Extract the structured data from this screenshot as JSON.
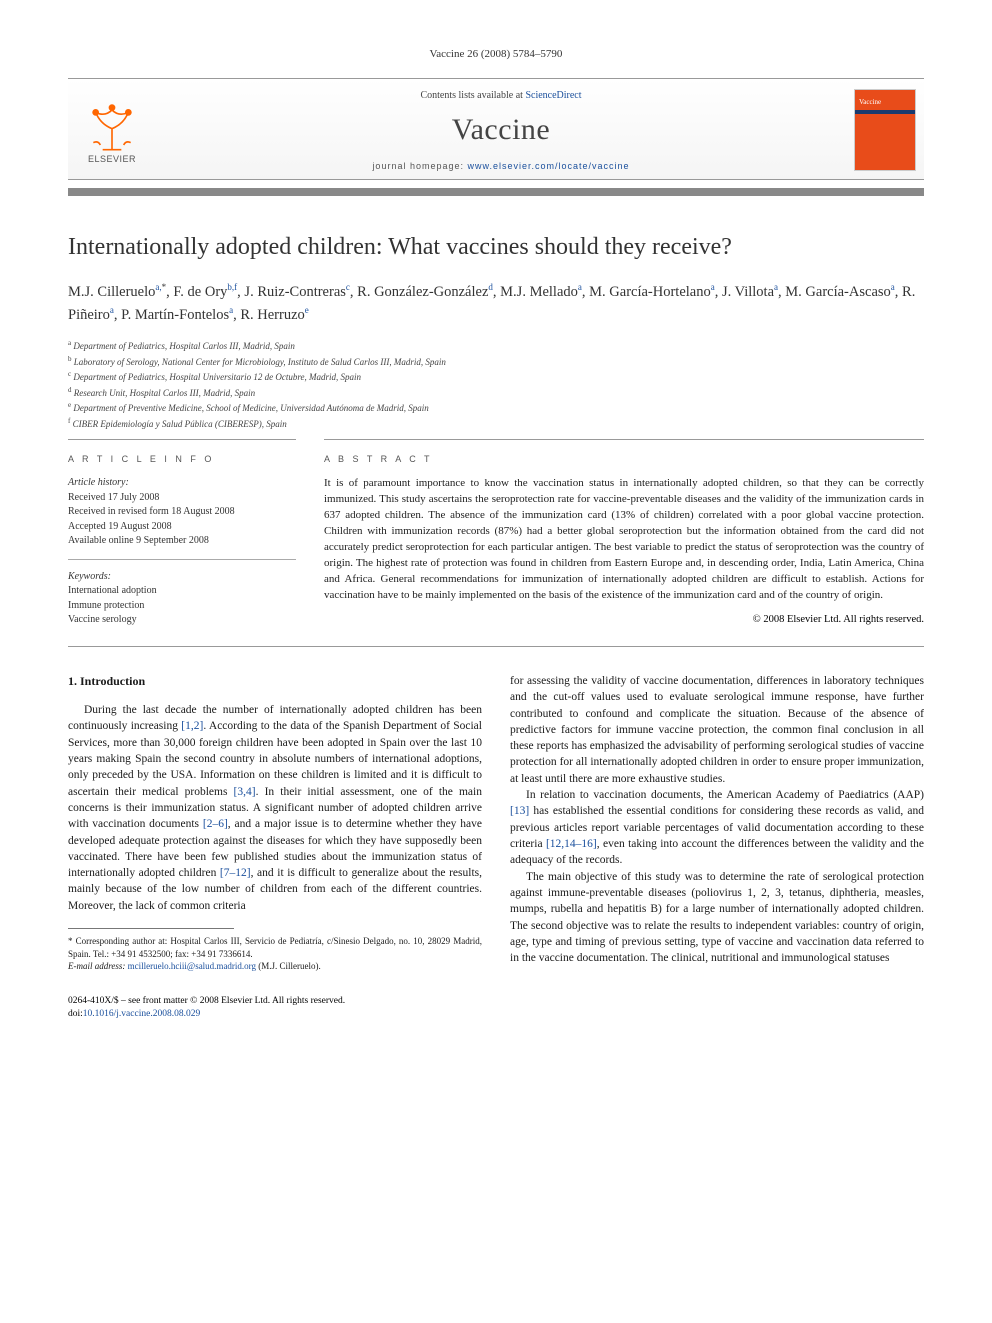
{
  "header_citation": "Vaccine 26 (2008) 5784–5790",
  "banner": {
    "contents_list_prefix": "Contents lists available at ",
    "contents_list_link": "ScienceDirect",
    "journal": "Vaccine",
    "homepage_prefix": "journal homepage: ",
    "homepage_url": "www.elsevier.com/locate/vaccine",
    "elsevier": "ELSEVIER",
    "cover_label": "Vaccine",
    "colors": {
      "elsevier_orange": "#ff6600",
      "cover_bg": "#e84c1a",
      "link": "#1a4f9c",
      "rule": "#888888"
    }
  },
  "title": "Internationally adopted children: What vaccines should they receive?",
  "authors_html": "M.J. Cilleruelo<sup>a,</sup><sup class=\"sup-star\">*</sup>, F. de Ory<sup>b,f</sup>, J. Ruiz-Contreras<sup>c</sup>, R. González-González<sup>d</sup>, M.J. Mellado<sup>a</sup>, M. García-Hortelano<sup>a</sup>, J. Villota<sup>a</sup>, M. García-Ascaso<sup>a</sup>, R. Piñeiro<sup>a</sup>, P. Martín-Fontelos<sup>a</sup>, R. Herruzo<sup>e</sup>",
  "affiliations": [
    {
      "sup": "a",
      "text": "Department of Pediatrics, Hospital Carlos III, Madrid, Spain"
    },
    {
      "sup": "b",
      "text": "Laboratory of Serology, National Center for Microbiology, Instituto de Salud Carlos III, Madrid, Spain"
    },
    {
      "sup": "c",
      "text": "Department of Pediatrics, Hospital Universitario 12 de Octubre, Madrid, Spain"
    },
    {
      "sup": "d",
      "text": "Research Unit, Hospital Carlos III, Madrid, Spain"
    },
    {
      "sup": "e",
      "text": "Department of Preventive Medicine, School of Medicine, Universidad Autónoma de Madrid, Spain"
    },
    {
      "sup": "f",
      "text": "CIBER Epidemiología y Salud Pública (CIBERESP), Spain"
    }
  ],
  "info_label": "A R T I C L E   I N F O",
  "abstract_label": "A B S T R A C T",
  "history": {
    "label": "Article history:",
    "received": "Received 17 July 2008",
    "received_revised": "Received in revised form 18 August 2008",
    "accepted": "Accepted 19 August 2008",
    "online": "Available online 9 September 2008"
  },
  "keywords": {
    "label": "Keywords:",
    "items": [
      "International adoption",
      "Immune protection",
      "Vaccine serology"
    ]
  },
  "abstract": "It is of paramount importance to know the vaccination status in internationally adopted children, so that they can be correctly immunized. This study ascertains the seroprotection rate for vaccine-preventable diseases and the validity of the immunization cards in 637 adopted children. The absence of the immunization card (13% of children) correlated with a poor global vaccine protection. Children with immunization records (87%) had a better global seroprotection but the information obtained from the card did not accurately predict seroprotection for each particular antigen. The best variable to predict the status of seroprotection was the country of origin. The highest rate of protection was found in children from Eastern Europe and, in descending order, India, Latin America, China and Africa. General recommendations for immunization of internationally adopted children are difficult to establish. Actions for vaccination have to be mainly implemented on the basis of the existence of the immunization card and of the country of origin.",
  "copyright": "© 2008 Elsevier Ltd. All rights reserved.",
  "intro_heading": "1.  Introduction",
  "intro_p1_pre": "During the last decade the number of internationally adopted children has been continuously increasing ",
  "intro_p1_ref1": "[1,2]",
  "intro_p1_mid1": ". According to the data of the Spanish Department of Social Services, more than 30,000 foreign children have been adopted in Spain over the last 10 years making Spain the second country in absolute numbers of international adoptions, only preceded by the USA. Information on these children is limited and it is difficult to ascertain their medical problems ",
  "intro_p1_ref2": "[3,4]",
  "intro_p1_mid2": ". In their initial assessment, one of the main concerns is their immunization status. A significant number of adopted children arrive with vaccination documents ",
  "intro_p1_ref3": "[2–6]",
  "intro_p1_mid3": ", and a major issue is to determine whether they have developed adequate protection against the diseases for which they have supposedly been vaccinated. There have been few published studies about the immunization status of internationally adopted children ",
  "intro_p1_ref4": "[7–12]",
  "intro_p1_post": ", and it is difficult to generalize about the results, mainly because of the low number of children from each of the different countries. Moreover, the lack of common criteria",
  "col2_p1": "for assessing the validity of vaccine documentation, differences in laboratory techniques and the cut-off values used to evaluate serological immune response, have further contributed to confound and complicate the situation. Because of the absence of predictive factors for immune vaccine protection, the common final conclusion in all these reports has emphasized the advisability of performing serological studies of vaccine protection for all internationally adopted children in order to ensure proper immunization, at least until there are more exhaustive studies.",
  "col2_p2_pre": "In relation to vaccination documents, the American Academy of Paediatrics (AAP) ",
  "col2_p2_ref1": "[13]",
  "col2_p2_mid": " has established the essential conditions for considering these records as valid, and previous articles report variable percentages of valid documentation according to these criteria ",
  "col2_p2_ref2": "[12,14–16]",
  "col2_p2_post": ", even taking into account the differences between the validity and the adequacy of the records.",
  "col2_p3": "The main objective of this study was to determine the rate of serological protection against immune-preventable diseases (poliovirus 1, 2, 3, tetanus, diphtheria, measles, mumps, rubella and hepatitis B) for a large number of internationally adopted children. The second objective was to relate the results to independent variables: country of origin, age, type and timing of previous setting, type of vaccine and vaccination data referred to in the vaccine documentation. The clinical, nutritional and immunological statuses",
  "footnote": {
    "star": "*",
    "text_pre": " Corresponding author at: Hospital Carlos III, Servicio de Pediatría, c/Sinesio Delgado, no. 10, 28029 Madrid, Spain. Tel.: +34 91 4532500; fax: +34 91 7336614.",
    "email_label": "E-mail address: ",
    "email": "mcilleruelo.hciii@salud.madrid.org",
    "email_post": " (M.J. Cilleruelo)."
  },
  "footer": {
    "line1": "0264-410X/$ – see front matter © 2008 Elsevier Ltd. All rights reserved.",
    "doi_label": "doi:",
    "doi": "10.1016/j.vaccine.2008.08.029"
  }
}
